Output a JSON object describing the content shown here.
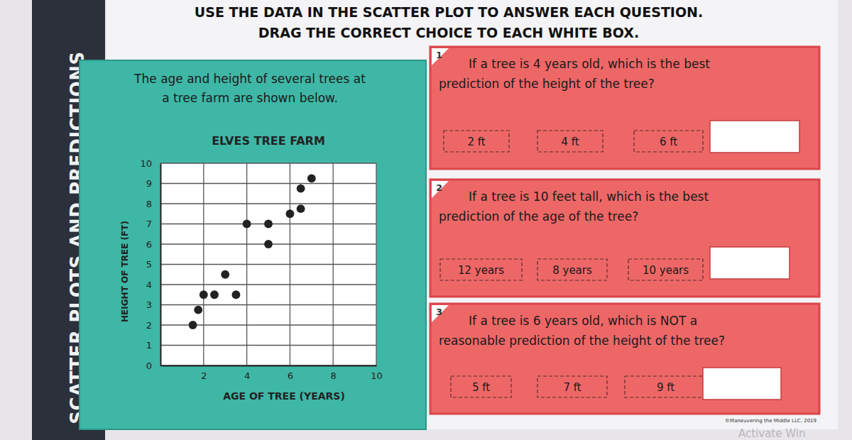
{
  "side_title": "SCATTER PLOTS AND PREDICTIONS",
  "header": [
    "USE THE DATA IN THE SCATTER PLOT TO ANSWER EACH QUESTION.",
    "DRAG THE CORRECT CHOICE TO EACH WHITE BOX."
  ],
  "description": [
    "The age and height of several trees at",
    "a tree farm are shown below."
  ],
  "chart_data": {
    "type": "scatter",
    "title": "ELVES TREE FARM",
    "x_label": "AGE OF TREE (YEARS)",
    "y_label": "HEIGHT OF TREE (FT)",
    "x": [
      1.5,
      1.75,
      2,
      2.5,
      3.5,
      3,
      4,
      5,
      5,
      6,
      6.5,
      6.5,
      7
    ],
    "values": [
      2,
      2.75,
      3.5,
      3.5,
      3.5,
      4.5,
      7,
      6,
      7,
      7.5,
      7.75,
      8.75,
      9.25
    ],
    "color": "#222222",
    "marker": "circle",
    "xlim": [
      0,
      10
    ],
    "ylim": [
      0,
      10
    ],
    "xticks": [
      2,
      4,
      6,
      8,
      10
    ],
    "yticks": [
      0,
      1,
      2,
      3,
      4,
      5,
      6,
      7,
      8,
      9,
      10
    ],
    "grid": true
  },
  "questions": [
    {
      "number": 1,
      "lines": [
        "If a tree is 4 years old, which is the best",
        "prediction of the height of the tree?"
      ],
      "choices": [
        "2 ft",
        "4 ft",
        "6 ft"
      ]
    },
    {
      "number": 2,
      "lines": [
        "If a tree is 10 feet tall, which is the best",
        "prediction of the age of the tree?"
      ],
      "choices": [
        "12 years",
        "8 years",
        "10 years"
      ]
    },
    {
      "number": 3,
      "lines": [
        "If a tree is 6 years old, which is NOT a",
        "reasonable prediction of the height of the tree?"
      ],
      "choices": [
        "5 ft",
        "7 ft",
        "9 ft"
      ]
    }
  ],
  "copyright": "©Maneuvering the Middle LLC, 2019",
  "watermark": "Activate Win"
}
